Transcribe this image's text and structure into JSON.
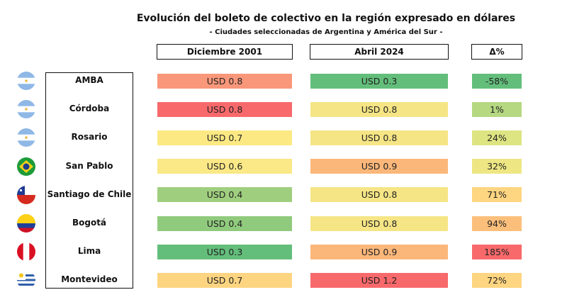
{
  "chart_data": {
    "type": "table",
    "title": "Evolución del boleto de colectivo en la región expresado en dólares",
    "subtitle": "- Ciudades seleccionadas de Argentina y América del Sur -",
    "columns": [
      "Diciembre 2001",
      "Abril 2024",
      "Δ%"
    ],
    "rows": [
      {
        "city": "AMBA",
        "flag": "argentina-flag",
        "dec2001": "USD 0.8",
        "abr2024": "USD 0.3",
        "delta": "-58%",
        "colors": [
          "#f9977a",
          "#63be7b",
          "#63be7b"
        ]
      },
      {
        "city": "Córdoba",
        "flag": "argentina-flag",
        "dec2001": "USD 0.8",
        "abr2024": "USD 0.8",
        "delta": "1%",
        "colors": [
          "#f8696b",
          "#f5e585",
          "#b5d881"
        ]
      },
      {
        "city": "Rosario",
        "flag": "argentina-flag",
        "dec2001": "USD 0.7",
        "abr2024": "USD 0.8",
        "delta": "24%",
        "colors": [
          "#fde983",
          "#f5e585",
          "#dde482"
        ]
      },
      {
        "city": "San Pablo",
        "flag": "brazil-flag",
        "dec2001": "USD 0.6",
        "abr2024": "USD 0.9",
        "delta": "32%",
        "colors": [
          "#fbe886",
          "#fbb77a",
          "#eee683"
        ]
      },
      {
        "city": "Santiago de Chile",
        "flag": "chile-flag",
        "dec2001": "USD 0.4",
        "abr2024": "USD 0.8",
        "delta": "71%",
        "colors": [
          "#9fcf7e",
          "#f5e585",
          "#fed580"
        ]
      },
      {
        "city": "Bogotá",
        "flag": "colombia-flag",
        "dec2001": "USD 0.4",
        "abr2024": "USD 0.8",
        "delta": "94%",
        "colors": [
          "#90ca7d",
          "#f5e585",
          "#fcbf7b"
        ]
      },
      {
        "city": "Lima",
        "flag": "peru-flag",
        "dec2001": "USD 0.3",
        "abr2024": "USD 0.9",
        "delta": "185%",
        "colors": [
          "#63be7b",
          "#fbb77a",
          "#f8696b"
        ]
      },
      {
        "city": "Montevideo",
        "flag": "uruguay-flag",
        "dec2001": "USD 0.7",
        "abr2024": "USD 1.2",
        "delta": "72%",
        "colors": [
          "#fdd480",
          "#f8696b",
          "#fed580"
        ]
      }
    ]
  }
}
